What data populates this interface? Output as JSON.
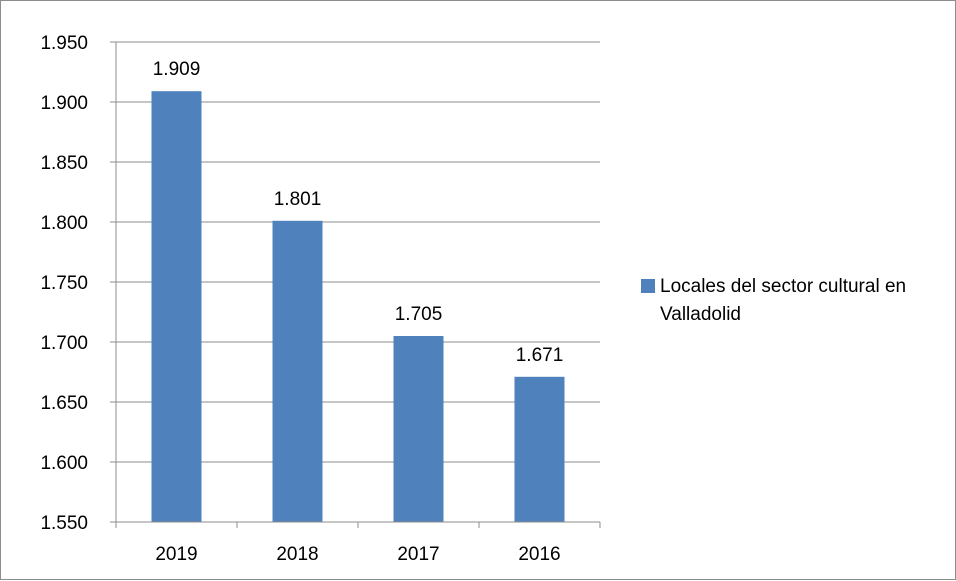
{
  "chart_data": {
    "type": "bar",
    "categories": [
      "2019",
      "2018",
      "2017",
      "2016"
    ],
    "series": [
      {
        "name": "Locales del sector cultural en Valladolid",
        "values": [
          1909,
          1801,
          1705,
          1671
        ],
        "labels": [
          "1.909",
          "1.801",
          "1.705",
          "1.671"
        ]
      }
    ],
    "ylim": [
      1550,
      1950
    ],
    "yticks": [
      1550,
      1600,
      1650,
      1700,
      1750,
      1800,
      1850,
      1900,
      1950
    ],
    "ytick_labels": [
      "1.550",
      "1.600",
      "1.650",
      "1.700",
      "1.750",
      "1.800",
      "1.850",
      "1.900",
      "1.950"
    ],
    "grid": true,
    "legend_position": "right",
    "bar_color": "#4f81bd",
    "grid_color": "#8c8c8c"
  },
  "legend": {
    "label": "Locales del sector cultural en Valladolid"
  }
}
